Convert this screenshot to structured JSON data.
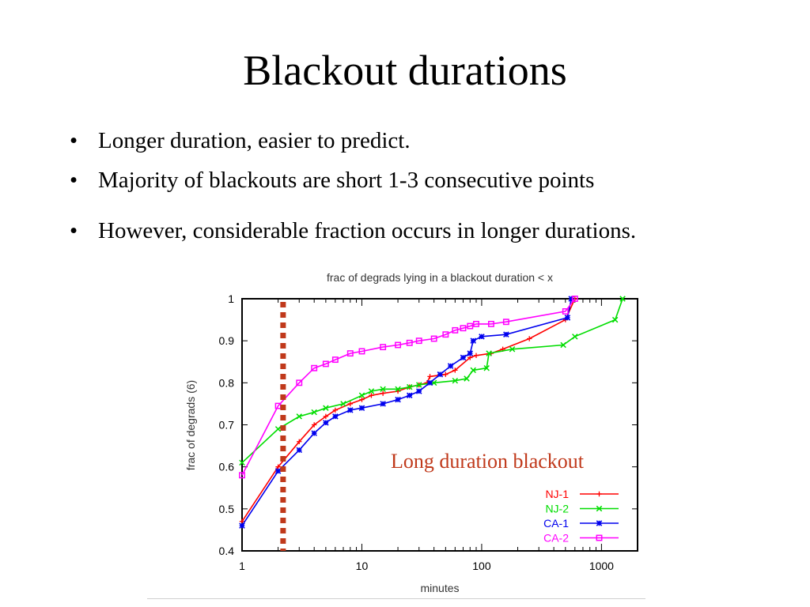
{
  "slide": {
    "title": "Blackout durations",
    "bullets": [
      "Longer duration, easier to predict.",
      "Majority of blackouts are short 1-3 consecutive points",
      "However, considerable fraction occurs in longer durations."
    ]
  },
  "chart_data": {
    "type": "line",
    "title": "frac of degrads lying in a blackout duration < x",
    "xlabel": "minutes",
    "ylabel": "frac of degrads (6)",
    "xscale": "log",
    "xlim": [
      1,
      2000
    ],
    "ylim": [
      0.4,
      1.0
    ],
    "xticks": [
      "1",
      "10",
      "100",
      "1000"
    ],
    "yticks": [
      "0.4",
      "0.5",
      "0.6",
      "0.7",
      "0.8",
      "0.9",
      "1"
    ],
    "legend_position": "bottom-right",
    "annotation": "Long duration blackout",
    "annotation_color": "#c0391b",
    "marker_line_x": 2.2,
    "marker_line_color": "#c0391b",
    "series": [
      {
        "name": "NJ-1",
        "color": "#ff0000",
        "marker": "plus",
        "points": [
          [
            1,
            0.47
          ],
          [
            2,
            0.6
          ],
          [
            3,
            0.66
          ],
          [
            4,
            0.7
          ],
          [
            5,
            0.72
          ],
          [
            6,
            0.735
          ],
          [
            8,
            0.75
          ],
          [
            10,
            0.76
          ],
          [
            12,
            0.77
          ],
          [
            15,
            0.775
          ],
          [
            20,
            0.78
          ],
          [
            25,
            0.79
          ],
          [
            30,
            0.795
          ],
          [
            35,
            0.8
          ],
          [
            37,
            0.815
          ],
          [
            50,
            0.82
          ],
          [
            60,
            0.83
          ],
          [
            80,
            0.86
          ],
          [
            90,
            0.865
          ],
          [
            120,
            0.87
          ],
          [
            150,
            0.88
          ],
          [
            250,
            0.905
          ],
          [
            500,
            0.95
          ],
          [
            600,
            1.0
          ]
        ]
      },
      {
        "name": "NJ-2",
        "color": "#00dd00",
        "marker": "cross",
        "points": [
          [
            1,
            0.61
          ],
          [
            2,
            0.69
          ],
          [
            3,
            0.72
          ],
          [
            4,
            0.73
          ],
          [
            5,
            0.74
          ],
          [
            7,
            0.75
          ],
          [
            10,
            0.77
          ],
          [
            12,
            0.78
          ],
          [
            15,
            0.785
          ],
          [
            20,
            0.785
          ],
          [
            25,
            0.79
          ],
          [
            30,
            0.795
          ],
          [
            40,
            0.8
          ],
          [
            60,
            0.805
          ],
          [
            75,
            0.81
          ],
          [
            85,
            0.83
          ],
          [
            110,
            0.835
          ],
          [
            115,
            0.87
          ],
          [
            180,
            0.88
          ],
          [
            480,
            0.89
          ],
          [
            600,
            0.91
          ],
          [
            1300,
            0.95
          ],
          [
            1500,
            1.0
          ]
        ]
      },
      {
        "name": "CA-1",
        "color": "#0000ee",
        "marker": "star",
        "points": [
          [
            1,
            0.46
          ],
          [
            2,
            0.59
          ],
          [
            3,
            0.64
          ],
          [
            4,
            0.68
          ],
          [
            5,
            0.705
          ],
          [
            6,
            0.72
          ],
          [
            8,
            0.735
          ],
          [
            10,
            0.74
          ],
          [
            15,
            0.75
          ],
          [
            20,
            0.76
          ],
          [
            25,
            0.77
          ],
          [
            30,
            0.78
          ],
          [
            37,
            0.8
          ],
          [
            45,
            0.82
          ],
          [
            55,
            0.84
          ],
          [
            70,
            0.86
          ],
          [
            80,
            0.87
          ],
          [
            85,
            0.9
          ],
          [
            100,
            0.91
          ],
          [
            160,
            0.915
          ],
          [
            520,
            0.955
          ],
          [
            560,
            1.0
          ]
        ]
      },
      {
        "name": "CA-2",
        "color": "#ff00ff",
        "marker": "square",
        "points": [
          [
            1,
            0.58
          ],
          [
            2,
            0.745
          ],
          [
            3,
            0.8
          ],
          [
            4,
            0.835
          ],
          [
            5,
            0.845
          ],
          [
            6,
            0.855
          ],
          [
            8,
            0.87
          ],
          [
            10,
            0.875
          ],
          [
            15,
            0.885
          ],
          [
            20,
            0.89
          ],
          [
            25,
            0.895
          ],
          [
            30,
            0.9
          ],
          [
            40,
            0.905
          ],
          [
            50,
            0.915
          ],
          [
            60,
            0.925
          ],
          [
            70,
            0.93
          ],
          [
            80,
            0.935
          ],
          [
            90,
            0.94
          ],
          [
            120,
            0.94
          ],
          [
            160,
            0.945
          ],
          [
            500,
            0.97
          ],
          [
            600,
            1.0
          ]
        ]
      }
    ]
  }
}
